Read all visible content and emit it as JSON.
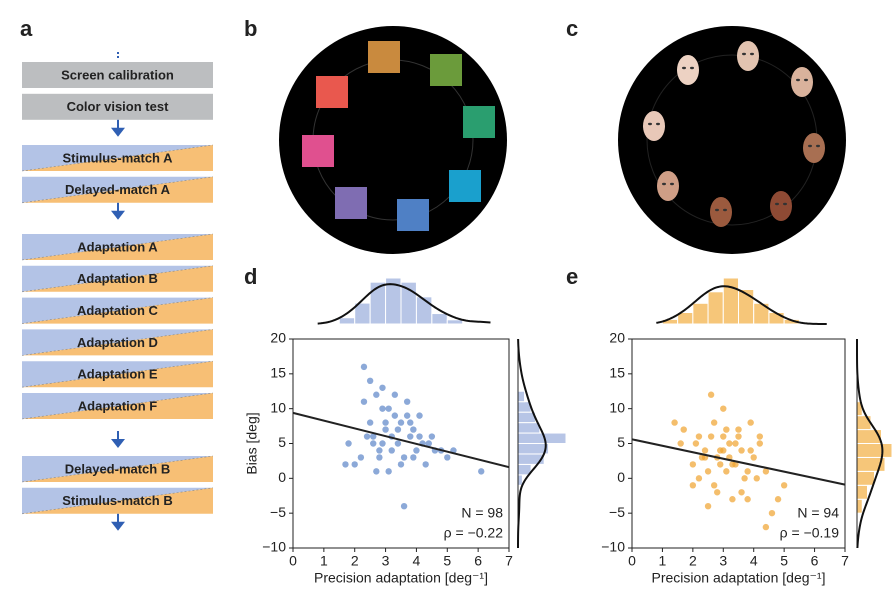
{
  "panel_labels": [
    "a",
    "b",
    "c",
    "d",
    "e"
  ],
  "flowchart": {
    "groups": [
      [
        "Screen calibration",
        "Color vision test"
      ],
      [
        "Stimulus-match A",
        "Delayed-match A"
      ],
      [
        "Adaptation A",
        "Adaptation B",
        "Adaptation C",
        "Adaptation D",
        "Adaptation E",
        "Adaptation F"
      ],
      [
        "Delayed-match B",
        "Stimulus-match B"
      ]
    ]
  },
  "chart_data": [
    {
      "type": "scatter",
      "color": "#5b84c8",
      "hist_color": "#b7c5e6",
      "x": [
        2.3,
        2.5,
        2.7,
        2.9,
        3.1,
        3.3,
        3.5,
        3.7,
        3.9,
        4.1,
        2.4,
        2.6,
        2.8,
        3.0,
        3.2,
        3.4,
        3.6,
        3.8,
        4.0,
        4.2,
        1.8,
        2.0,
        2.2,
        4.4,
        4.6,
        4.8,
        5.0,
        5.2,
        6.1,
        2.5,
        2.9,
        3.3,
        3.7,
        4.1,
        2.7,
        3.1,
        3.5,
        3.9,
        2.3,
        3.0,
        3.4,
        2.6,
        2.8,
        3.6,
        1.7,
        4.5,
        3.2,
        2.9,
        3.8,
        4.3
      ],
      "y": [
        16,
        14,
        12,
        13,
        10,
        9,
        8,
        11,
        7,
        9,
        6,
        5,
        4,
        7,
        6,
        5,
        3,
        6,
        4,
        5,
        5,
        2,
        3,
        5,
        4,
        4,
        3,
        4,
        1,
        8,
        10,
        12,
        9,
        6,
        1,
        1,
        2,
        3,
        11,
        8,
        7,
        6,
        3,
        -4,
        2,
        6,
        4,
        5,
        8,
        2
      ],
      "xlim": [
        0,
        7
      ],
      "ylim": [
        -10,
        20
      ],
      "xticks": [
        0,
        1,
        2,
        3,
        4,
        5,
        6,
        7
      ],
      "yticks": [
        {
          "value": -10,
          "label": "−10"
        },
        {
          "value": -5,
          "label": "−5"
        },
        0,
        5,
        10,
        15,
        20
      ],
      "xlabel": "Precision adaptation [deg⁻¹]",
      "ylabel": "Bias [deg]",
      "annotations": [
        "N = 98",
        "ρ = −0.22"
      ],
      "fit": {
        "x": [
          0,
          7
        ],
        "y": [
          9.4,
          1.6
        ]
      },
      "x_hist": {
        "bins": [
          1.5,
          2,
          2.5,
          3,
          3.5,
          4,
          4.5,
          5,
          5.5
        ],
        "counts": [
          3,
          10,
          20,
          22,
          20,
          13,
          5,
          2
        ]
      },
      "y_hist": {
        "bins": [
          -1,
          0.5,
          2,
          3.5,
          5,
          6.5,
          8,
          9.5,
          11,
          12.5
        ],
        "counts": [
          2,
          6,
          12,
          14,
          22,
          10,
          8,
          6,
          3
        ]
      }
    },
    {
      "type": "scatter",
      "color": "#f0a22e",
      "hist_color": "#f6c679",
      "x": [
        1.4,
        1.7,
        2.0,
        2.2,
        2.4,
        2.6,
        2.8,
        3.0,
        3.2,
        3.4,
        3.6,
        3.8,
        4.0,
        4.2,
        4.4,
        4.6,
        4.8,
        5.0,
        2.1,
        2.3,
        2.5,
        2.7,
        2.9,
        3.1,
        3.3,
        3.5,
        3.7,
        3.9,
        2.5,
        2.7,
        3.0,
        3.2,
        3.4,
        2.8,
        3.6,
        3.9,
        4.2,
        1.6,
        2.0,
        2.4,
        3.1,
        3.3,
        2.6,
        2.9,
        3.5,
        4.1,
        3.0,
        2.2,
        3.8,
        4.4
      ],
      "y": [
        8,
        7,
        2,
        0,
        4,
        12,
        3,
        6,
        5,
        2,
        -2,
        1,
        3,
        5,
        -7,
        -5,
        -3,
        -1,
        5,
        3,
        1,
        -1,
        4,
        7,
        2,
        6,
        0,
        4,
        -4,
        8,
        10,
        3,
        5,
        -2,
        4,
        8,
        6,
        5,
        -1,
        3,
        1,
        -3,
        6,
        2,
        7,
        0,
        4,
        6,
        -3,
        1
      ],
      "xlim": [
        0,
        7
      ],
      "ylim": [
        -10,
        20
      ],
      "xticks": [
        0,
        1,
        2,
        3,
        4,
        5,
        6,
        7
      ],
      "yticks": [
        {
          "value": -10,
          "label": "−10"
        },
        {
          "value": -5,
          "label": "−5"
        },
        0,
        5,
        10,
        15,
        20
      ],
      "xlabel": "Precision adaptation [deg⁻¹]",
      "annotations": [
        "N = 94",
        "ρ = −0.19"
      ],
      "fit": {
        "x": [
          0,
          7
        ],
        "y": [
          5.6,
          -0.9
        ]
      },
      "x_hist": {
        "bins": [
          1,
          1.5,
          2,
          2.5,
          3,
          3.5,
          4,
          4.5,
          5,
          5.5
        ],
        "counts": [
          2,
          5,
          9,
          14,
          20,
          15,
          9,
          5,
          2
        ]
      },
      "y_hist": {
        "bins": [
          -5,
          -3,
          -1,
          1,
          3,
          5,
          7,
          9,
          11
        ],
        "counts": [
          3,
          6,
          10,
          16,
          20,
          14,
          8,
          3
        ]
      }
    }
  ]
}
